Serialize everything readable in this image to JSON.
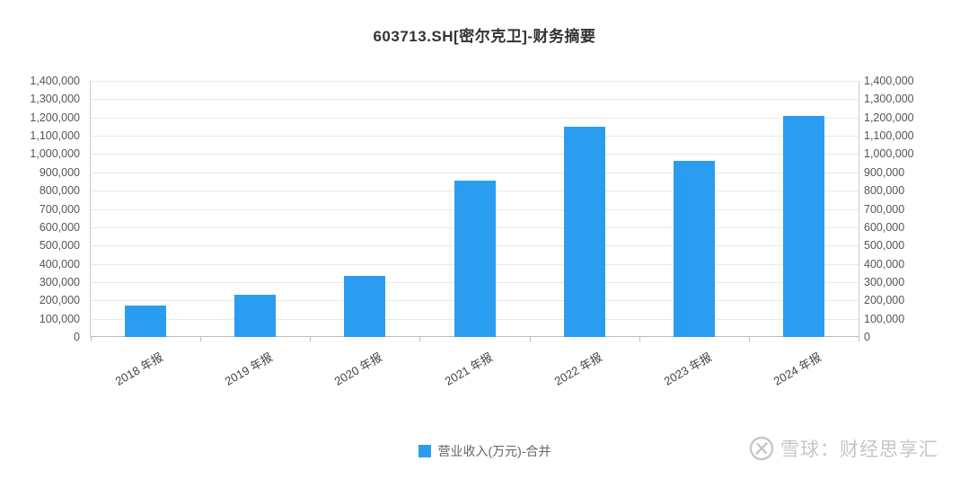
{
  "header": {
    "title": "603713.SH[密尔克卫]-财务摘要"
  },
  "legend": {
    "label": "营业收入(万元)-合并",
    "color": "#2B9DF0"
  },
  "watermark": {
    "text": "雪球：财经思享汇"
  },
  "chart_data": {
    "type": "bar",
    "title": "603713.SH[密尔克卫]-财务摘要",
    "categories": [
      "2018 年报",
      "2019 年报",
      "2020 年报",
      "2021 年报",
      "2022 年报",
      "2023 年报",
      "2024 年报"
    ],
    "series": [
      {
        "name": "营业收入(万元)-合并",
        "values": [
          170000,
          230000,
          335000,
          855000,
          1150000,
          965000,
          1210000
        ]
      }
    ],
    "xlabel": "",
    "ylabel": "",
    "ylim": [
      0,
      1400000
    ],
    "ytick_step": 100000,
    "y_axis_sides": [
      "left",
      "right"
    ],
    "grid": true,
    "bar_color": "#2B9DF0",
    "legend_position": "bottom"
  }
}
